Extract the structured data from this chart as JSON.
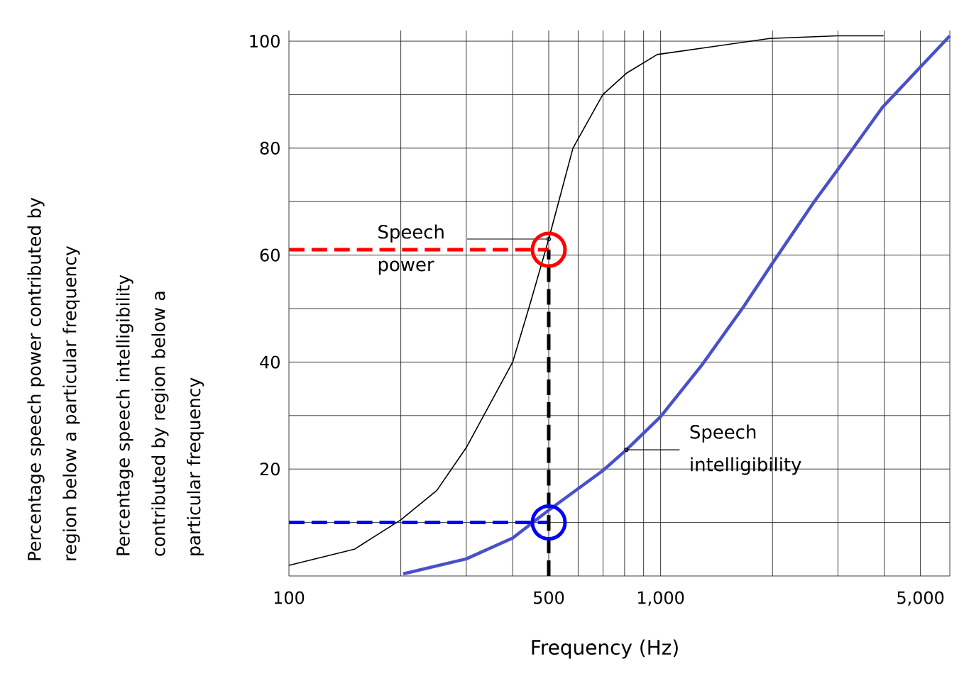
{
  "chart_data": {
    "type": "line",
    "xlabel": "Frequency (Hz)",
    "annotations": [
      "Percentage speech power contributed by region below a particular frequency",
      "Percentage speech intelligibility contributed by region below a particular frequency"
    ],
    "log": "x",
    "grid": true,
    "marker": "none",
    "line_style": "solid",
    "xlim": [
      100,
      6000
    ],
    "ylim": [
      0,
      102
    ],
    "xticks": [
      100,
      {
        "value": 200,
        "label": null
      },
      {
        "value": 300,
        "label": null
      },
      {
        "value": 400,
        "label": null
      },
      500,
      {
        "value": 600,
        "label": null
      },
      {
        "value": 700,
        "label": null
      },
      {
        "value": 800,
        "label": null
      },
      {
        "value": 900,
        "label": null
      },
      {
        "value": 1000,
        "label": "1,000"
      },
      {
        "value": 2000,
        "label": null
      },
      {
        "value": 3000,
        "label": null
      },
      {
        "value": 4000,
        "label": null
      },
      {
        "value": 5000,
        "label": "5,000"
      },
      {
        "value": 6000,
        "label": null
      }
    ],
    "yticks": [
      {
        "value": 0,
        "label": null
      },
      {
        "value": 10,
        "label": null
      },
      20,
      {
        "value": 30,
        "label": null
      },
      40,
      {
        "value": 50,
        "label": null
      },
      60,
      {
        "value": 70,
        "label": null
      },
      80,
      {
        "value": 90,
        "label": null
      },
      100
    ],
    "series": [
      {
        "name": "Speech power",
        "color": "#000000",
        "x": [
          100,
          150,
          200,
          250,
          300,
          400,
          446,
          500,
          581,
          699,
          809,
          979,
          1965,
          2990,
          3980
        ],
        "values": [
          2,
          5,
          10.5,
          16,
          24,
          40,
          51,
          63,
          80,
          90,
          94,
          97.5,
          100.5,
          101,
          101
        ]
      },
      {
        "name": "Speech intelligibility",
        "color": "#4a50c8",
        "x": [
          203,
          300,
          400,
          500,
          699,
          809,
          1000,
          1290,
          1670,
          2000,
          2590,
          2990,
          3950,
          5130,
          6000
        ],
        "values": [
          0.4,
          3.2,
          7.1,
          12.3,
          19.7,
          23.6,
          29.8,
          39.4,
          50.3,
          58.5,
          70,
          75.9,
          87.6,
          96,
          101
        ]
      }
    ],
    "ref_lines": [
      {
        "axis": "y",
        "value": 61,
        "color": "#ff0000",
        "line_style": "dashed"
      },
      {
        "axis": "y",
        "value": 10,
        "color": "#0000ff",
        "line_style": "dashed"
      },
      {
        "axis": "x",
        "value": 500,
        "color": "#000000",
        "line_style": "dashed"
      }
    ]
  }
}
